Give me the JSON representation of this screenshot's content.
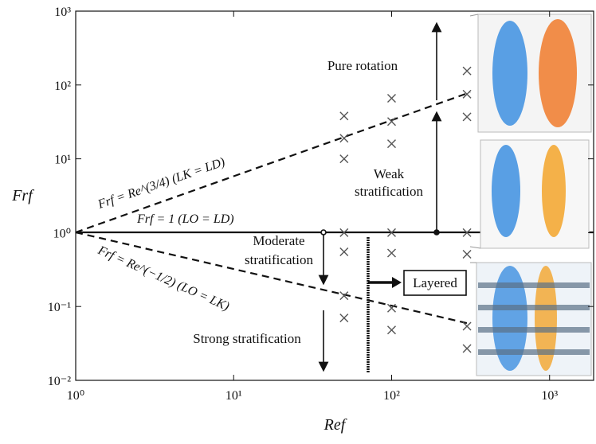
{
  "chart_data": {
    "type": "scatter",
    "x_label": "Ref",
    "y_label": "Frf",
    "log_x": true,
    "log_y": true,
    "xlim": [
      1,
      1900
    ],
    "ylim": [
      0.01,
      1000
    ],
    "xticks": [
      {
        "value": 1,
        "label": "10⁰"
      },
      {
        "value": 10,
        "label": "10¹"
      },
      {
        "value": 100,
        "label": "10²"
      },
      {
        "value": 1000,
        "label": "10³"
      }
    ],
    "yticks": [
      {
        "value": 0.01,
        "label": "10⁻²"
      },
      {
        "value": 0.1,
        "label": "10⁻¹"
      },
      {
        "value": 1,
        "label": "10⁰"
      },
      {
        "value": 10,
        "label": "10¹"
      },
      {
        "value": 100,
        "label": "10²"
      },
      {
        "value": 1000,
        "label": "10³"
      }
    ],
    "color": "#555555",
    "x": [
      50,
      50,
      50,
      50,
      50,
      50,
      50,
      100,
      100,
      100,
      100,
      100,
      100,
      100,
      300,
      300,
      300,
      300,
      300,
      300,
      300
    ],
    "values": [
      38,
      19,
      10,
      1,
      0.55,
      0.14,
      0.07,
      66,
      32,
      16,
      1,
      0.53,
      0.095,
      0.048,
      155,
      75,
      37,
      1,
      0.51,
      0.054,
      0.027
    ],
    "annotations": [
      "Pure rotation",
      "Weak",
      "stratification",
      "Moderate",
      "stratification",
      "Strong stratification",
      "Layered",
      "Frf = Re^(3/4)  (LK = LD)",
      "Frf = 1  (LO = LD)",
      "Frf = Re^(−1/2)  (LO = LK)"
    ]
  }
}
